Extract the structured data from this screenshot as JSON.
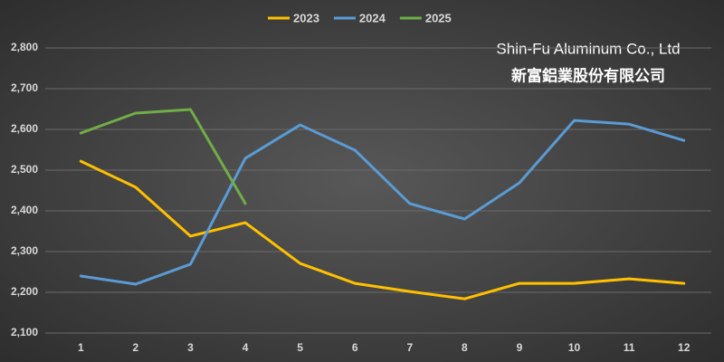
{
  "chart_data": {
    "type": "line",
    "annotations": [
      "Shin-Fu Aluminum Co., Ltd",
      "新富鋁業股份有限公司"
    ],
    "categories": [
      1,
      2,
      3,
      4,
      5,
      6,
      7,
      8,
      9,
      10,
      11,
      12
    ],
    "series": [
      {
        "name": "2023",
        "color": "#ffc000",
        "values": [
          2522,
          2458,
          2338,
          2371,
          2271,
          2222,
          2202,
          2184,
          2222,
          2222,
          2233,
          2222
        ]
      },
      {
        "name": "2024",
        "color": "#5b9bd5",
        "values": [
          2240,
          2220,
          2269,
          2529,
          2611,
          2549,
          2418,
          2380,
          2469,
          2622,
          2613,
          2573
        ]
      },
      {
        "name": "2025",
        "color": "#70ad47",
        "values": [
          2591,
          2640,
          2649,
          2418,
          null,
          null,
          null,
          null,
          null,
          null,
          null,
          null
        ]
      }
    ],
    "ylim": [
      2100,
      2800
    ],
    "yticks": [
      {
        "value": 2100,
        "label": "2,100"
      },
      {
        "value": 2200,
        "label": "2,200"
      },
      {
        "value": 2300,
        "label": "2,300"
      },
      {
        "value": 2400,
        "label": "2,400"
      },
      {
        "value": 2500,
        "label": "2,500"
      },
      {
        "value": 2600,
        "label": "2,600"
      },
      {
        "value": 2700,
        "label": "2,700"
      },
      {
        "value": 2800,
        "label": "2,800"
      }
    ],
    "grid": true,
    "legend": "top"
  }
}
